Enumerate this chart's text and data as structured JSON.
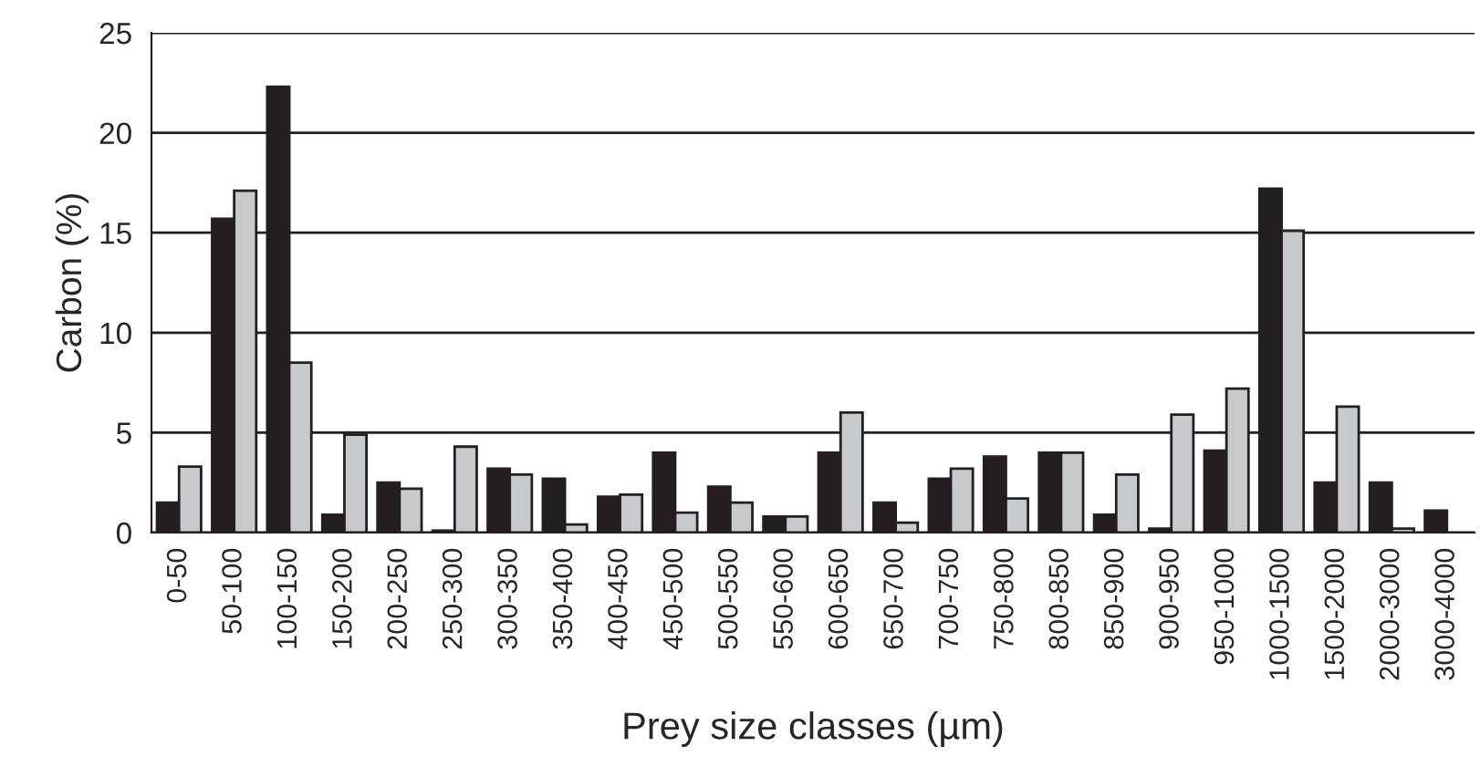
{
  "chart_data": {
    "type": "bar",
    "xlabel": "Prey size classes (µm)",
    "ylabel": "Carbon (%)",
    "categories": [
      "0-50",
      "50-100",
      "100-150",
      "150-200",
      "200-250",
      "250-300",
      "300-350",
      "350-400",
      "400-450",
      "450-500",
      "500-550",
      "550-600",
      "600-650",
      "650-700",
      "700-750",
      "750-800",
      "800-850",
      "850-900",
      "900-950",
      "950-1000",
      "1000-1500",
      "1500-2000",
      "2000-3000",
      "3000-4000"
    ],
    "series": [
      {
        "color": "#231f20",
        "values": [
          1.5,
          15.7,
          22.3,
          0.9,
          2.5,
          0.1,
          3.2,
          2.7,
          1.8,
          4.0,
          2.3,
          0.8,
          4.0,
          1.5,
          2.7,
          3.8,
          4.0,
          0.9,
          0.2,
          4.1,
          17.2,
          2.5,
          2.5,
          1.1
        ]
      },
      {
        "color": "#c8c9cb",
        "values": [
          3.3,
          17.1,
          8.5,
          4.9,
          2.2,
          4.3,
          2.9,
          0.4,
          1.9,
          1.0,
          1.5,
          0.8,
          6.0,
          0.5,
          3.2,
          1.7,
          4.0,
          2.9,
          5.9,
          7.2,
          15.1,
          6.3,
          0.2,
          null
        ]
      }
    ],
    "ylim": [
      0,
      25
    ],
    "yticks": [
      0,
      5,
      10,
      15,
      20,
      25
    ],
    "grid": "y",
    "legend": false
  }
}
